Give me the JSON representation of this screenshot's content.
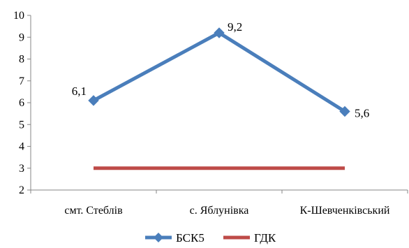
{
  "chart_data": {
    "type": "line",
    "categories": [
      "смт. Стеблів",
      "с. Яблунівка",
      "К-Шевченківський"
    ],
    "ylim": [
      2,
      10
    ],
    "yticks": [
      2,
      3,
      4,
      5,
      6,
      7,
      8,
      9,
      10
    ],
    "grid": false,
    "legend_position": "bottom",
    "series": [
      {
        "name": "БСК5",
        "values": [
          6.1,
          9.2,
          5.6
        ],
        "labels": [
          "6,1",
          "9,2",
          "5,6"
        ],
        "color": "#4a7ebb",
        "marker": "diamond"
      },
      {
        "name": "ГДК",
        "values": [
          3,
          3,
          3
        ],
        "color": "#be4b48",
        "marker": "none"
      }
    ]
  }
}
